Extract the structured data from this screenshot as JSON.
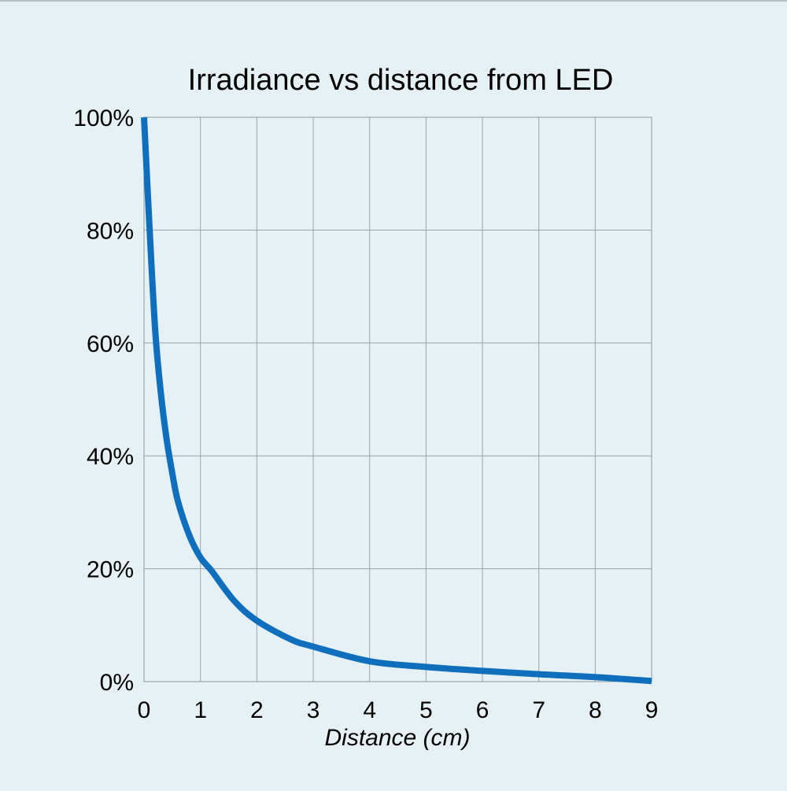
{
  "chart_data": {
    "type": "line",
    "title": "Irradiance vs distance from LED",
    "xlabel": "Distance (cm)",
    "ylabel": "",
    "x_ticks": [
      "0",
      "1",
      "2",
      "3",
      "4",
      "5",
      "6",
      "7",
      "8",
      "9"
    ],
    "y_ticks": [
      "0%",
      "20%",
      "40%",
      "60%",
      "80%",
      "100%"
    ],
    "xlim": [
      0,
      9
    ],
    "ylim": [
      0,
      100
    ],
    "grid": true,
    "legend": "none",
    "series": [
      {
        "color": "#0f6fbd",
        "x": [
          0,
          0.1,
          0.2,
          0.3,
          0.4,
          0.5,
          0.6,
          0.8,
          1.0,
          1.2,
          1.6,
          2.0,
          2.6,
          3.0,
          4.0,
          5.0,
          6.0,
          7.0,
          8.0,
          9.0
        ],
        "y": [
          100,
          80,
          62,
          51,
          43,
          37,
          32,
          26,
          22,
          19.6,
          14.3,
          10.8,
          7.5,
          6.2,
          3.6,
          2.6,
          1.9,
          1.3,
          0.8,
          0.1
        ]
      }
    ]
  }
}
